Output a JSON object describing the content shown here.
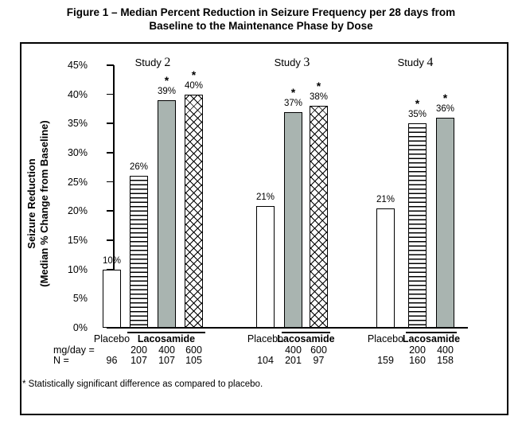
{
  "figure": {
    "title_line1": "Figure 1 – Median Percent Reduction in Seizure Frequency per 28 days from",
    "title_line2": "Baseline to the Maintenance Phase by Dose",
    "footnote": "* Statistically significant difference as compared to placebo."
  },
  "axis": {
    "y_title_line1": "Seizure Reduction",
    "y_title_line2": "(Median % Change from Baseline)",
    "y_tick_labels": [
      "0%",
      "5%",
      "10%",
      "15%",
      "20%",
      "25%",
      "30%",
      "35%",
      "40%",
      "45%"
    ],
    "y_min": 0,
    "y_max": 45,
    "tick_step": 5
  },
  "rows": {
    "mg_day_label": "mg/day =",
    "n_label": "N ="
  },
  "chart_data": {
    "type": "bar",
    "title": "Figure 1 – Median Percent Reduction in Seizure Frequency per 28 days from Baseline to the Maintenance Phase by Dose",
    "ylabel": "Seizure Reduction (Median % Change from Baseline)",
    "ylim": [
      0,
      45
    ],
    "grid": false,
    "significance_marker": "*",
    "group_label_placebo": "Placebo",
    "group_label_drug": "Lacosamide",
    "legend": {
      "plain": "Placebo",
      "hlines": "Lacosamide 200 mg/day",
      "solid": "Lacosamide 400 mg/day",
      "crosshatch": "Lacosamide 600 mg/day"
    },
    "groups": [
      {
        "study_word": "Study",
        "study_number": "2",
        "bars": [
          {
            "arm": "Placebo",
            "dose": null,
            "n": "96",
            "value": 10,
            "label": "10%",
            "significant": false,
            "pattern": "plain"
          },
          {
            "arm": "Lacosamide",
            "dose": "200",
            "n": "107",
            "value": 26,
            "label": "26%",
            "significant": false,
            "pattern": "hlines"
          },
          {
            "arm": "Lacosamide",
            "dose": "400",
            "n": "107",
            "value": 39,
            "label": "39%",
            "significant": true,
            "pattern": "solid"
          },
          {
            "arm": "Lacosamide",
            "dose": "600",
            "n": "105",
            "value": 40,
            "label": "40%",
            "significant": true,
            "pattern": "crosshatch"
          }
        ]
      },
      {
        "study_word": "Study",
        "study_number": "3",
        "bars": [
          {
            "arm": "Placebo",
            "dose": null,
            "n": "104",
            "value": 21,
            "plot_value": 20.8,
            "label": "21%",
            "significant": false,
            "pattern": "plain"
          },
          {
            "arm": "Lacosamide",
            "dose": "400",
            "n": "201",
            "value": 37,
            "label": "37%",
            "significant": true,
            "pattern": "solid"
          },
          {
            "arm": "Lacosamide",
            "dose": "600",
            "n": "97",
            "value": 38,
            "label": "38%",
            "significant": true,
            "pattern": "crosshatch"
          }
        ]
      },
      {
        "study_word": "Study",
        "study_number": "4",
        "bars": [
          {
            "arm": "Placebo",
            "dose": null,
            "n": "159",
            "value": 21,
            "plot_value": 20.5,
            "label": "21%",
            "significant": false,
            "pattern": "plain"
          },
          {
            "arm": "Lacosamide",
            "dose": "200",
            "n": "160",
            "value": 35,
            "label": "35%",
            "significant": true,
            "pattern": "hlines"
          },
          {
            "arm": "Lacosamide",
            "dose": "400",
            "n": "158",
            "value": 36,
            "label": "36%",
            "significant": true,
            "pattern": "solid"
          }
        ]
      }
    ]
  },
  "colors": {
    "solid_bar": "#a9b4b0",
    "bar_border": "#000000",
    "text": "#000000",
    "frame_border": "#000000"
  }
}
